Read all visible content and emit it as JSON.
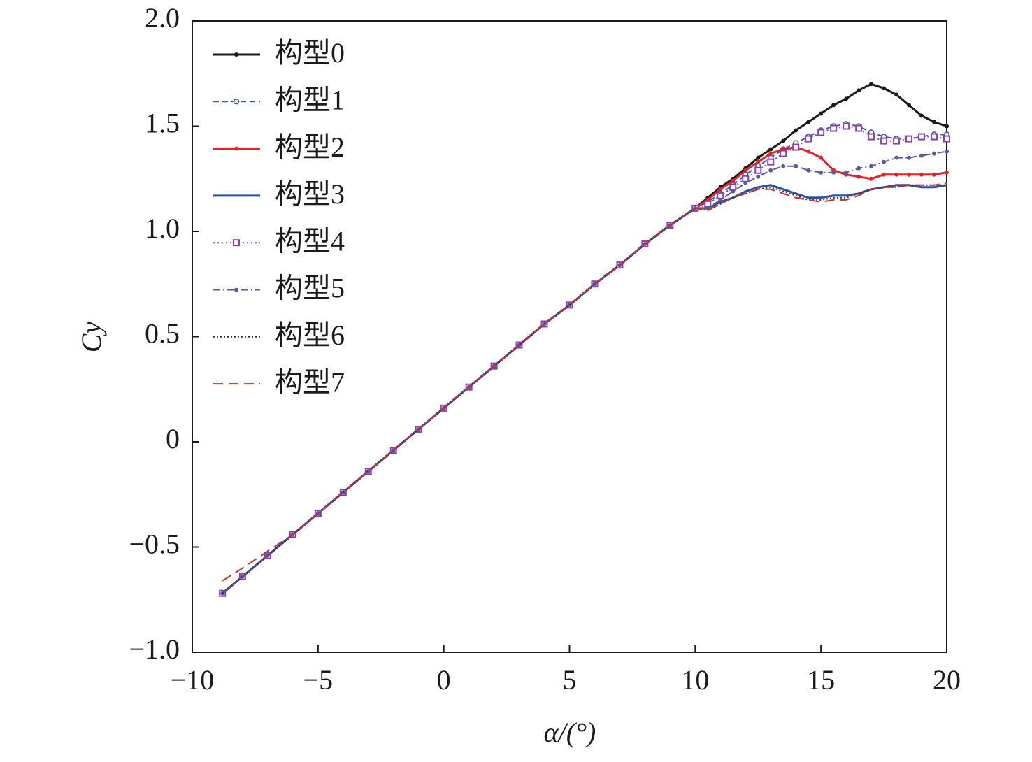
{
  "chart_data": {
    "type": "line",
    "xlabel": "α/(°)",
    "ylabel": "Cy",
    "xlim": [
      -10,
      20
    ],
    "ylim": [
      -1.0,
      2.0
    ],
    "xticks": [
      {
        "value": -10,
        "label": "−10"
      },
      {
        "value": -5,
        "label": "−5"
      },
      0,
      5,
      10,
      15,
      20
    ],
    "yticks": [
      {
        "value": -1.0,
        "label": "−1.0"
      },
      {
        "value": -0.5,
        "label": "−0.5"
      },
      0,
      0.5,
      {
        "value": 1.0,
        "label": "1.0"
      },
      1.5,
      {
        "value": 2.0,
        "label": "2.0"
      }
    ],
    "grid": false,
    "legend": "upper left",
    "x": [
      -8.8,
      -8,
      -7,
      -6,
      -5,
      -4,
      -3,
      -2,
      -1,
      0,
      1,
      2,
      3,
      4,
      5,
      6,
      7,
      8,
      9,
      10,
      10.5,
      11,
      11.5,
      12,
      12.5,
      13,
      13.5,
      14,
      14.5,
      15,
      15.5,
      16,
      16.5,
      17,
      17.5,
      18,
      18.5,
      19,
      19.5,
      20
    ],
    "series": [
      {
        "name": "构型0",
        "color": "#1a1a1a",
        "dash": "",
        "marker": "dot",
        "values": [
          -0.72,
          -0.64,
          -0.54,
          -0.44,
          -0.34,
          -0.24,
          -0.14,
          -0.04,
          0.06,
          0.16,
          0.26,
          0.36,
          0.46,
          0.56,
          0.65,
          0.75,
          0.84,
          0.94,
          1.03,
          1.11,
          1.16,
          1.21,
          1.25,
          1.3,
          1.35,
          1.39,
          1.43,
          1.48,
          1.52,
          1.56,
          1.6,
          1.63,
          1.67,
          1.7,
          1.68,
          1.65,
          1.6,
          1.55,
          1.52,
          1.5
        ]
      },
      {
        "name": "构型1",
        "color": "#3a5aa8",
        "dash": "8 5",
        "marker": "circle",
        "values": [
          -0.72,
          -0.64,
          -0.54,
          -0.44,
          -0.34,
          -0.24,
          -0.14,
          -0.04,
          0.06,
          0.16,
          0.26,
          0.36,
          0.46,
          0.56,
          0.65,
          0.75,
          0.84,
          0.94,
          1.03,
          1.11,
          1.14,
          1.18,
          1.22,
          1.27,
          1.31,
          1.35,
          1.39,
          1.42,
          1.45,
          1.48,
          1.5,
          1.51,
          1.5,
          1.47,
          1.45,
          1.44,
          1.44,
          1.45,
          1.46,
          1.46
        ]
      },
      {
        "name": "构型2",
        "color": "#e0242b",
        "dash": "",
        "marker": "dot",
        "values": [
          -0.72,
          -0.64,
          -0.54,
          -0.44,
          -0.34,
          -0.24,
          -0.14,
          -0.04,
          0.06,
          0.16,
          0.26,
          0.36,
          0.46,
          0.56,
          0.65,
          0.75,
          0.84,
          0.94,
          1.03,
          1.11,
          1.15,
          1.2,
          1.24,
          1.29,
          1.33,
          1.37,
          1.39,
          1.4,
          1.38,
          1.35,
          1.29,
          1.27,
          1.26,
          1.25,
          1.27,
          1.27,
          1.27,
          1.27,
          1.27,
          1.28
        ]
      },
      {
        "name": "构型3",
        "color": "#2d4fa0",
        "dash": "",
        "marker": "none",
        "values": [
          -0.72,
          -0.64,
          -0.54,
          -0.44,
          -0.34,
          -0.24,
          -0.14,
          -0.04,
          0.06,
          0.16,
          0.26,
          0.36,
          0.46,
          0.56,
          0.65,
          0.75,
          0.84,
          0.94,
          1.03,
          1.11,
          1.11,
          1.14,
          1.16,
          1.19,
          1.21,
          1.22,
          1.2,
          1.18,
          1.16,
          1.16,
          1.17,
          1.17,
          1.18,
          1.2,
          1.21,
          1.22,
          1.22,
          1.21,
          1.21,
          1.22
        ]
      },
      {
        "name": "构型4",
        "color": "#8a3fb0",
        "dash": "2 4",
        "marker": "square",
        "values": [
          -0.72,
          -0.64,
          -0.54,
          -0.44,
          -0.34,
          -0.24,
          -0.14,
          -0.04,
          0.06,
          0.16,
          0.26,
          0.36,
          0.46,
          0.56,
          0.65,
          0.75,
          0.84,
          0.94,
          1.03,
          1.11,
          1.13,
          1.17,
          1.21,
          1.25,
          1.29,
          1.33,
          1.37,
          1.4,
          1.44,
          1.47,
          1.49,
          1.5,
          1.49,
          1.45,
          1.43,
          1.43,
          1.44,
          1.45,
          1.45,
          1.44
        ]
      },
      {
        "name": "构型5",
        "color": "#5a5aa0",
        "dash": "10 4 2 4",
        "marker": "dot",
        "values": [
          -0.72,
          -0.64,
          -0.54,
          -0.44,
          -0.34,
          -0.24,
          -0.14,
          -0.04,
          0.06,
          0.16,
          0.26,
          0.36,
          0.46,
          0.56,
          0.65,
          0.75,
          0.84,
          0.94,
          1.03,
          1.11,
          1.11,
          1.15,
          1.19,
          1.23,
          1.26,
          1.29,
          1.31,
          1.31,
          1.29,
          1.28,
          1.28,
          1.28,
          1.3,
          1.31,
          1.33,
          1.35,
          1.35,
          1.36,
          1.37,
          1.38
        ]
      },
      {
        "name": "构型6",
        "color": "#333333",
        "dash": "2 3",
        "marker": "none",
        "values": [
          -0.72,
          -0.64,
          -0.54,
          -0.44,
          -0.34,
          -0.24,
          -0.14,
          -0.04,
          0.06,
          0.16,
          0.26,
          0.36,
          0.46,
          0.56,
          0.65,
          0.75,
          0.84,
          0.94,
          1.03,
          1.11,
          1.1,
          1.13,
          1.16,
          1.18,
          1.2,
          1.21,
          1.19,
          1.17,
          1.15,
          1.15,
          1.16,
          1.16,
          1.18,
          1.2,
          1.21,
          1.21,
          1.22,
          1.22,
          1.22,
          1.22
        ]
      },
      {
        "name": "构型7",
        "color": "#c03030",
        "dash": "14 8",
        "marker": "none",
        "values": [
          -0.66,
          -0.6,
          -0.52,
          -0.44,
          -0.34,
          -0.24,
          -0.14,
          -0.04,
          0.06,
          0.16,
          0.26,
          0.36,
          0.46,
          0.56,
          0.65,
          0.75,
          0.84,
          0.94,
          1.03,
          1.11,
          1.1,
          1.13,
          1.16,
          1.18,
          1.2,
          1.2,
          1.18,
          1.16,
          1.15,
          1.14,
          1.15,
          1.15,
          1.17,
          1.2,
          1.21,
          1.21,
          1.22,
          1.22,
          1.22,
          1.23
        ]
      }
    ]
  }
}
